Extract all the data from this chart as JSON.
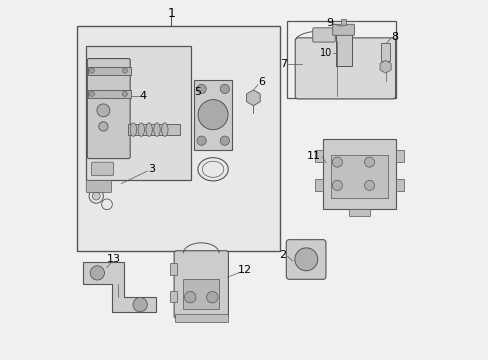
{
  "background_color": "#f0f0f0",
  "line_color": "#555555",
  "text_color": "#000000"
}
